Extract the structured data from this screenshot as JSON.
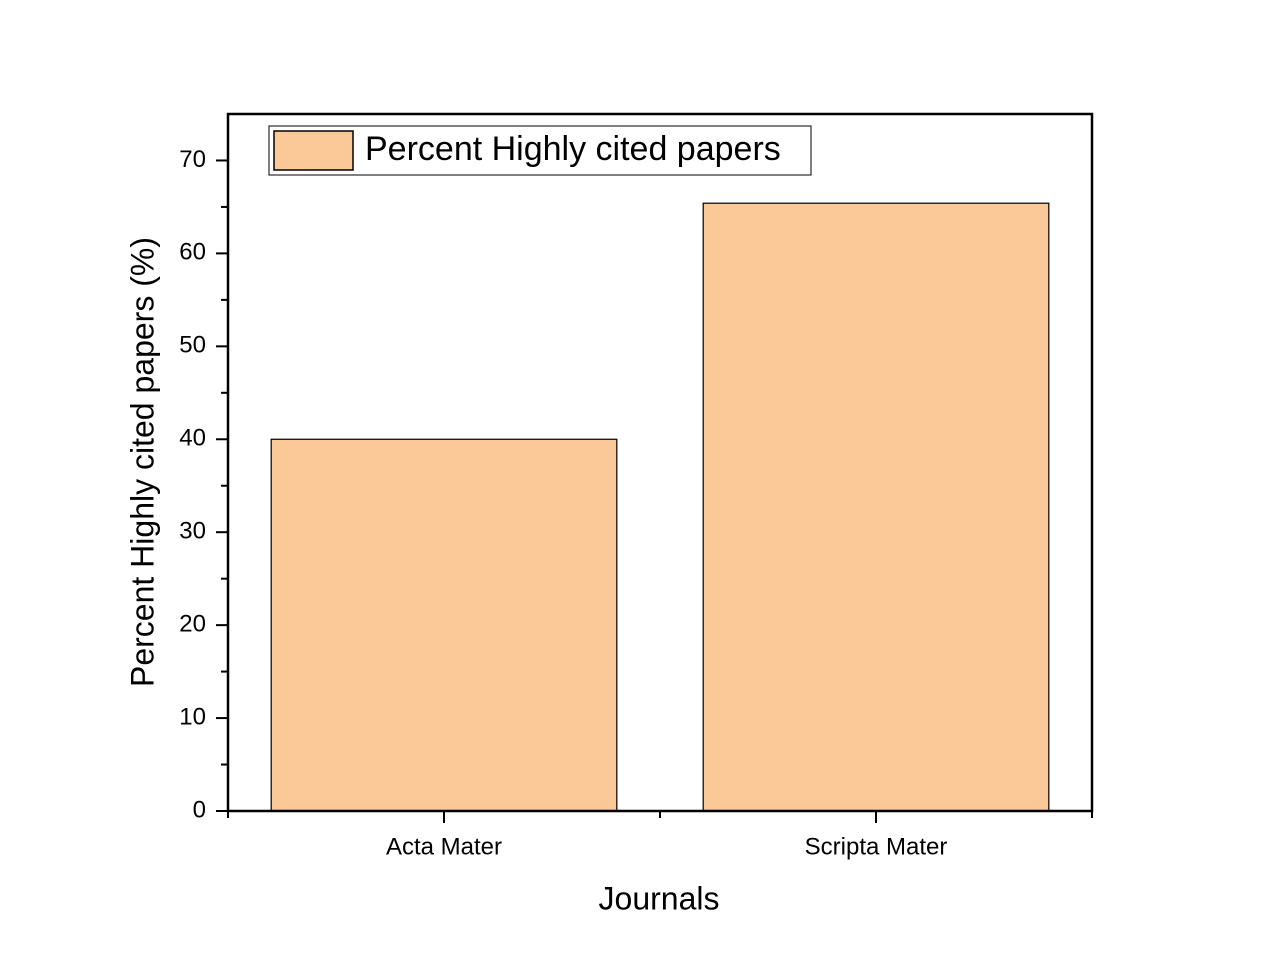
{
  "chart_data": {
    "type": "bar",
    "categories": [
      "Acta Mater",
      "Scripta Mater"
    ],
    "series": [
      {
        "name": "Percent Highly cited papers",
        "color": "#fbc898",
        "values": [
          40,
          65.4
        ]
      }
    ],
    "xlabel": "Journals",
    "ylabel": "Percent Highly cited papers (%)",
    "ylim": [
      0,
      75
    ],
    "yticks": [
      0,
      10,
      20,
      30,
      40,
      50,
      60,
      70
    ],
    "legend": "upper left",
    "grid": false
  }
}
